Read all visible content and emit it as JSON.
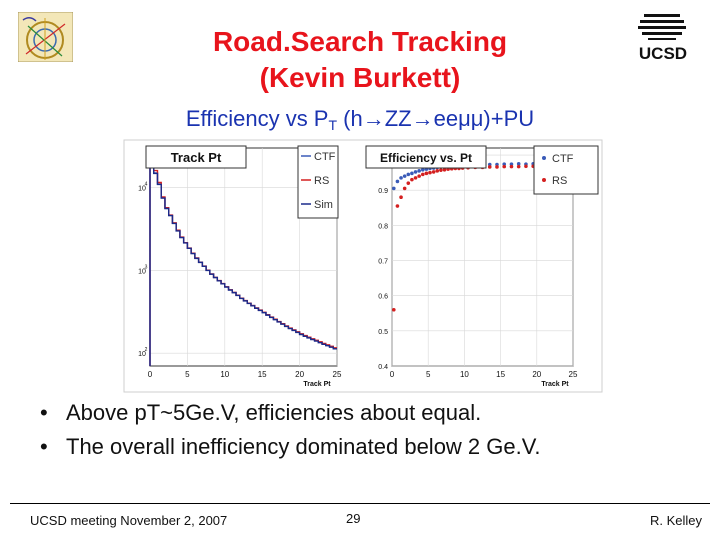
{
  "slide": {
    "title_line1": "Road.Search Tracking",
    "title_line2": "(Kevin Burkett)",
    "subtitle_pre": "Efficiency vs P",
    "subtitle_sub": "T",
    "subtitle_post": " (h→ZZ→eeμμ)+PU",
    "bullets": [
      "Above pT~5Ge.V, efficiencies about equal.",
      "The overall inefficiency dominated below 2 Ge.V."
    ],
    "footer_left": "UCSD meeting November 2, 2007",
    "footer_page": "29",
    "footer_right": "R. Kelley",
    "logo_text": "UCSD",
    "colors": {
      "title": "#e8141c",
      "subtitle": "#1a33b0",
      "ctf": "#3a5bb8",
      "rs": "#d42020",
      "sim": "#1a2a8a"
    }
  },
  "chart_data": [
    {
      "type": "line",
      "title": "Track Pt",
      "xlabel": "Track Pt",
      "ylabel": "",
      "log_y": true,
      "xlim": [
        0,
        25
      ],
      "ylim": [
        70,
        30000
      ],
      "x_ticks": [
        0,
        5,
        10,
        15,
        20,
        25
      ],
      "y_ticks": [
        100,
        1000,
        10000
      ],
      "y_tick_labels": [
        "10",
        "10",
        "10"
      ],
      "y_tick_exponents": [
        "2",
        "3",
        "4"
      ],
      "legend": [
        "CTF",
        "RS",
        "Sim"
      ],
      "legend_position": "top-right",
      "x": [
        0,
        0.5,
        1,
        1.5,
        2,
        2.5,
        3,
        3.5,
        4,
        4.5,
        5,
        5.5,
        6,
        6.5,
        7,
        7.5,
        8,
        8.5,
        9,
        9.5,
        10,
        10.5,
        11,
        11.5,
        12,
        12.5,
        13,
        13.5,
        14,
        14.5,
        15,
        15.5,
        16,
        16.5,
        17,
        17.5,
        18,
        18.5,
        19,
        19.5,
        20,
        20.5,
        21,
        21.5,
        22,
        22.5,
        23,
        23.5,
        24,
        24.5
      ],
      "series": [
        {
          "name": "CTF",
          "values": [
            20000,
            15000,
            11000,
            7500,
            5600,
            4600,
            3700,
            3000,
            2500,
            2150,
            1850,
            1600,
            1400,
            1250,
            1120,
            1000,
            900,
            820,
            750,
            690,
            630,
            580,
            540,
            500,
            460,
            430,
            400,
            375,
            350,
            330,
            310,
            290,
            272,
            256,
            240,
            226,
            212,
            200,
            190,
            180,
            170,
            162,
            155,
            148,
            142,
            136,
            130,
            125,
            120,
            115
          ]
        },
        {
          "name": "RS",
          "values": [
            22000,
            16000,
            11500,
            7700,
            5700,
            4650,
            3750,
            3050,
            2520,
            2160,
            1860,
            1610,
            1410,
            1255,
            1125,
            1005,
            905,
            822,
            752,
            692,
            632,
            582,
            541,
            501,
            461,
            431,
            401,
            376,
            351,
            331,
            311,
            291,
            273,
            257,
            241,
            227,
            213,
            201,
            191,
            181,
            171,
            163,
            156,
            149,
            143,
            137,
            131,
            126,
            121,
            116
          ]
        },
        {
          "name": "Sim",
          "values": [
            19500,
            14800,
            10900,
            7450,
            5580,
            4580,
            3680,
            2990,
            2490,
            2140,
            1845,
            1595,
            1395,
            1248,
            1118,
            998,
            898,
            818,
            748,
            688,
            628,
            578,
            538,
            498,
            458,
            428,
            398,
            373,
            348,
            328,
            308,
            288,
            270,
            254,
            238,
            224,
            210,
            198,
            188,
            178,
            168,
            160,
            153,
            146,
            140,
            134,
            128,
            123,
            118,
            113
          ]
        }
      ]
    },
    {
      "type": "scatter",
      "title": "Efficiency vs. Pt",
      "xlabel": "Track Pt",
      "ylabel": "",
      "xlim": [
        0,
        25
      ],
      "ylim": [
        0.4,
        1.02
      ],
      "x_ticks": [
        0,
        5,
        10,
        15,
        20,
        25
      ],
      "y_ticks": [
        0.4,
        0.5,
        0.6,
        0.7,
        0.8,
        0.9,
        1.0
      ],
      "y_tick_labels": [
        "0.4",
        "0.5",
        "0.6",
        "0.7",
        "0.8",
        "0.9",
        "1"
      ],
      "legend": [
        "CTF",
        "RS"
      ],
      "legend_position": "top-right",
      "x": [
        0.25,
        0.75,
        1.25,
        1.75,
        2.25,
        2.75,
        3.25,
        3.75,
        4.25,
        4.75,
        5.25,
        5.75,
        6.25,
        6.75,
        7.25,
        7.75,
        8.25,
        8.75,
        9.25,
        9.75,
        10.5,
        11.5,
        12.5,
        13.5,
        14.5,
        15.5,
        16.5,
        17.5,
        18.5,
        19.5,
        20.5,
        21.5,
        22.5,
        23.5,
        24.5
      ],
      "series": [
        {
          "name": "CTF",
          "values": [
            0.905,
            0.925,
            0.935,
            0.94,
            0.945,
            0.948,
            0.952,
            0.955,
            0.958,
            0.96,
            0.962,
            0.963,
            0.965,
            0.966,
            0.967,
            0.968,
            0.969,
            0.969,
            0.97,
            0.97,
            0.971,
            0.972,
            0.972,
            0.973,
            0.973,
            0.974,
            0.974,
            0.975,
            0.974,
            0.975,
            0.976,
            0.975,
            0.976,
            0.976,
            0.977
          ]
        },
        {
          "name": "RS",
          "values": [
            0.56,
            0.855,
            0.88,
            0.905,
            0.92,
            0.93,
            0.935,
            0.94,
            0.945,
            0.948,
            0.95,
            0.952,
            0.955,
            0.957,
            0.958,
            0.96,
            0.961,
            0.962,
            0.962,
            0.963,
            0.964,
            0.965,
            0.965,
            0.966,
            0.966,
            0.967,
            0.967,
            0.967,
            0.968,
            0.968,
            0.968,
            0.969,
            0.969,
            0.969,
            0.97
          ]
        }
      ]
    }
  ]
}
